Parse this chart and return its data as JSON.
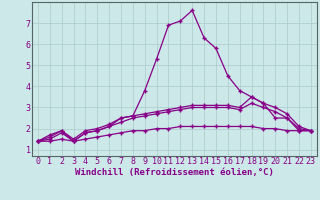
{
  "background_color": "#cce8e8",
  "line_color": "#880088",
  "grid_color": "#aacccc",
  "xlabel": "Windchill (Refroidissement éolien,°C)",
  "xlabel_fontsize": 6.5,
  "tick_fontsize": 6.0,
  "ylim": [
    0.7,
    8.0
  ],
  "xlim": [
    -0.5,
    23.5
  ],
  "yticks": [
    1,
    2,
    3,
    4,
    5,
    6,
    7
  ],
  "xticks": [
    0,
    1,
    2,
    3,
    4,
    5,
    6,
    7,
    8,
    9,
    10,
    11,
    12,
    13,
    14,
    15,
    16,
    17,
    18,
    19,
    20,
    21,
    22,
    23
  ],
  "series": {
    "line1": {
      "x": [
        0,
        1,
        2,
        3,
        4,
        5,
        6,
        7,
        8,
        9,
        10,
        11,
        12,
        13,
        14,
        15,
        16,
        17,
        18,
        19,
        20,
        21,
        22,
        23
      ],
      "y": [
        1.4,
        1.7,
        1.9,
        1.5,
        1.9,
        2.0,
        2.2,
        2.5,
        2.6,
        3.8,
        5.3,
        6.9,
        7.1,
        7.6,
        6.3,
        5.8,
        4.5,
        3.8,
        3.5,
        3.2,
        2.5,
        2.5,
        1.9,
        1.9
      ]
    },
    "line2": {
      "x": [
        0,
        1,
        2,
        3,
        4,
        5,
        6,
        7,
        8,
        9,
        10,
        11,
        12,
        13,
        14,
        15,
        16,
        17,
        18,
        19,
        20,
        21,
        22,
        23
      ],
      "y": [
        1.4,
        1.6,
        1.9,
        1.4,
        1.8,
        1.9,
        2.1,
        2.5,
        2.6,
        2.7,
        2.8,
        2.9,
        3.0,
        3.1,
        3.1,
        3.1,
        3.1,
        3.0,
        3.5,
        3.2,
        3.0,
        2.7,
        2.1,
        1.9
      ]
    },
    "line3": {
      "x": [
        0,
        1,
        2,
        3,
        4,
        5,
        6,
        7,
        8,
        9,
        10,
        11,
        12,
        13,
        14,
        15,
        16,
        17,
        18,
        19,
        20,
        21,
        22,
        23
      ],
      "y": [
        1.4,
        1.5,
        1.8,
        1.4,
        1.8,
        1.9,
        2.1,
        2.3,
        2.5,
        2.6,
        2.7,
        2.8,
        2.9,
        3.0,
        3.0,
        3.0,
        3.0,
        2.9,
        3.2,
        3.0,
        2.8,
        2.5,
        2.0,
        1.9
      ]
    },
    "line4": {
      "x": [
        0,
        1,
        2,
        3,
        4,
        5,
        6,
        7,
        8,
        9,
        10,
        11,
        12,
        13,
        14,
        15,
        16,
        17,
        18,
        19,
        20,
        21,
        22,
        23
      ],
      "y": [
        1.4,
        1.4,
        1.5,
        1.4,
        1.5,
        1.6,
        1.7,
        1.8,
        1.9,
        1.9,
        2.0,
        2.0,
        2.1,
        2.1,
        2.1,
        2.1,
        2.1,
        2.1,
        2.1,
        2.0,
        2.0,
        1.9,
        1.9,
        1.9
      ]
    }
  }
}
